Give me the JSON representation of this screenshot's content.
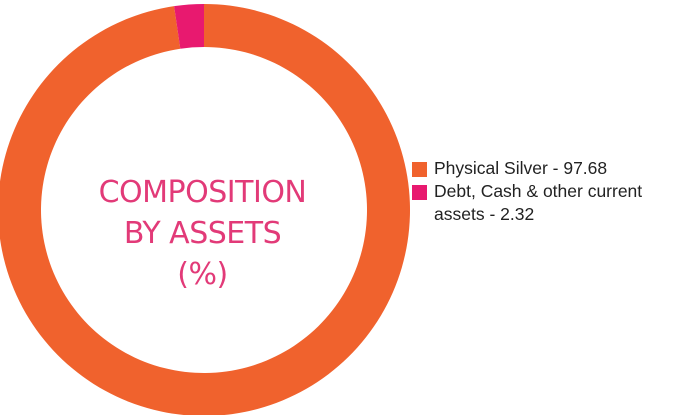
{
  "chart_data": {
    "type": "pie",
    "donut": true,
    "title": "",
    "center_label": [
      "COMPOSITION",
      "BY ASSETS",
      "(%)"
    ],
    "categories": [
      "Physical Silver",
      "Debt, Cash & other current assets"
    ],
    "values": [
      97.68,
      2.32
    ],
    "legend": {
      "placement": "right",
      "entries": [
        "Physical Silver - 97.68",
        "Debt, Cash & other current assets - 2.32"
      ]
    }
  },
  "colors": {
    "physical_silver": "#f0622d",
    "debt_cash": "#e8196f",
    "label_text": "#e23a78"
  }
}
